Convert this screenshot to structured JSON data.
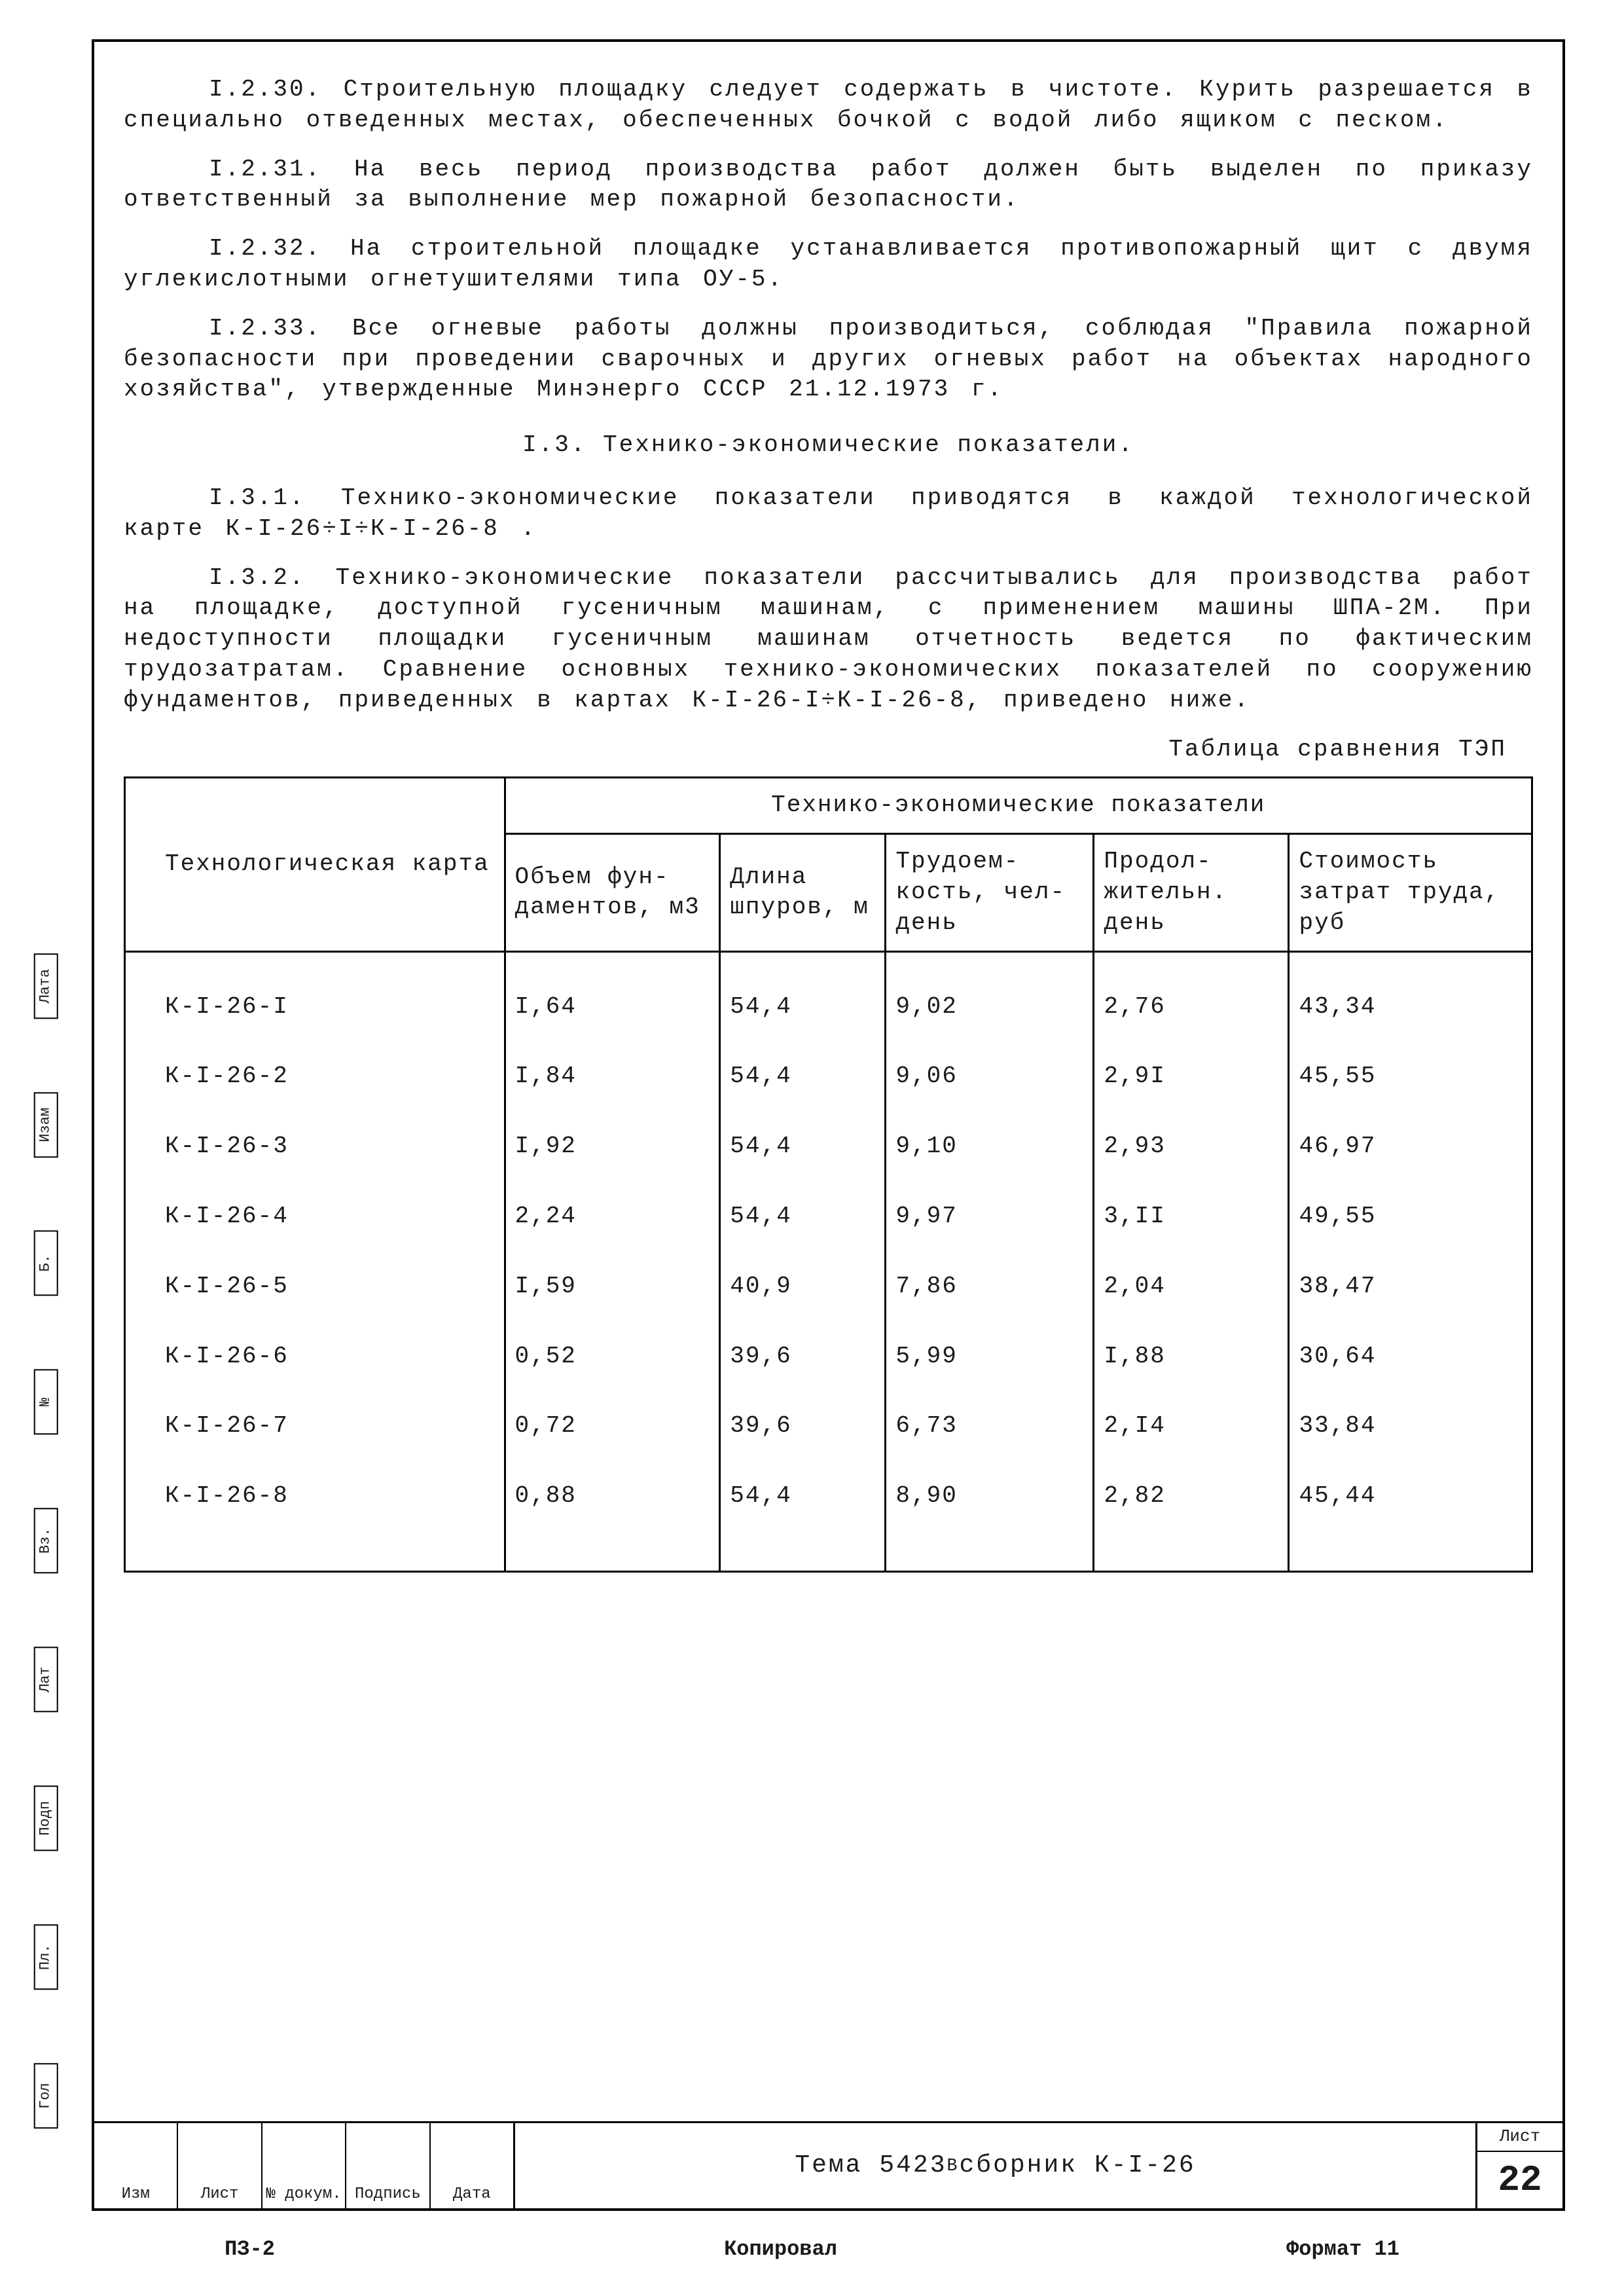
{
  "paragraphs": {
    "p1": "І.2.30. Строительную площадку следует содержать в чистоте. Курить разрешается в специально отведенных местах, обеспеченных бочкой с водой либо ящиком с песком.",
    "p2": "І.2.31. На весь период производства работ должен быть выделен по приказу ответственный за выполнение мер пожарной безопасности.",
    "p3": "І.2.32. На строительной площадке устанавливается противопожарный щит с двумя углекислотными огнетушителями типа ОУ-5.",
    "p4": "І.2.33. Все огневые работы должны производиться, соблюдая \"Правила пожарной безопасности при проведении сварочных и других огневых работ на объектах народного хозяйства\", утвержденные Минэнерго СССР 21.12.1973 г.",
    "section": "І.3. Технико-экономические показатели.",
    "p5": "І.3.1. Технико-экономические показатели приводятся в каждой технологической карте К-І-26÷І÷К-І-26-8 .",
    "p6": "І.3.2. Технико-экономические показатели рассчитывались для производства работ на площадке, доступной гусеничным машинам, с применением машины ШПА-2М. При недоступности площадки гусеничным машинам отчетность ведется по фактическим трудозатратам. Сравнение основных технико-экономических показателей по сооружению фундаментов, приведенных в картах К-І-26-І÷К-І-26-8, приведено ниже."
  },
  "table": {
    "caption": "Таблица сравнения ТЭП",
    "head": {
      "card": "Технологическая карта",
      "group": "Технико-экономические   показатели",
      "cols": [
        "Объем фун­даментов, м3",
        "Длина шпуров, м",
        "Трудоем­кость, чел-день",
        "Продол­жительн. день",
        "Стоимость затрат труда, руб"
      ]
    },
    "rows": [
      [
        "К-І-26-І",
        "І,64",
        "54,4",
        "9,02",
        "2,76",
        "43,34"
      ],
      [
        "К-І-26-2",
        "І,84",
        "54,4",
        "9,06",
        "2,9І",
        "45,55"
      ],
      [
        "К-І-26-3",
        "І,92",
        "54,4",
        "9,10",
        "2,93",
        "46,97"
      ],
      [
        "К-І-26-4",
        "2,24",
        "54,4",
        "9,97",
        "3,ІІ",
        "49,55"
      ],
      [
        "К-І-26-5",
        "І,59",
        "40,9",
        "7,86",
        "2,04",
        "38,47"
      ],
      [
        "К-І-26-6",
        "0,52",
        "39,6",
        "5,99",
        "І,88",
        "30,64"
      ],
      [
        "К-І-26-7",
        "0,72",
        "39,6",
        "6,73",
        "2,І4",
        "33,84"
      ],
      [
        "К-І-26-8",
        "0,88",
        "54,4",
        "8,90",
        "2,82",
        "45,44"
      ]
    ]
  },
  "footer": {
    "cells": [
      "Изм",
      "Лист",
      "№ докум.",
      "Подпись",
      "Дата"
    ],
    "title_prefix": "Тема 5423",
    "title_sup": "В",
    "title_suffix": "   сборник К-І-26",
    "page_label": "Лист",
    "page_num": "22"
  },
  "bottom": {
    "a": "ПЗ-2",
    "b": "Копировал",
    "c": "Формат 11"
  },
  "side": [
    "Лата",
    "Изам",
    "Б.",
    "№",
    "Вз.",
    "Лат",
    "Подп",
    "Пл.",
    "Гол"
  ]
}
